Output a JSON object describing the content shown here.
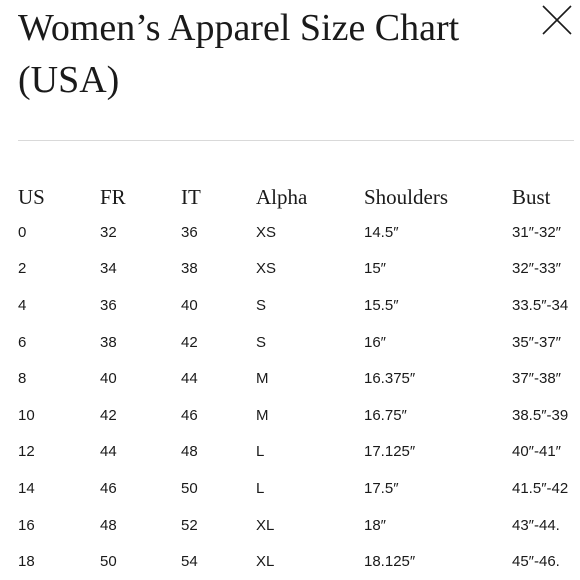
{
  "title": "Women’s Apparel Size Chart (USA)",
  "close_icon": "close-icon",
  "table": {
    "headers": [
      "US",
      "FR",
      "IT",
      "Alpha",
      "Shoulders",
      "Bust"
    ],
    "rows": [
      [
        "0",
        "32",
        "36",
        "XS",
        "14.5″",
        "31″-32″"
      ],
      [
        "2",
        "34",
        "38",
        "XS",
        "15″",
        "32″-33″"
      ],
      [
        "4",
        "36",
        "40",
        "S",
        "15.5″",
        "33.5″-34"
      ],
      [
        "6",
        "38",
        "42",
        "S",
        "16″",
        "35″-37″"
      ],
      [
        "8",
        "40",
        "44",
        "M",
        "16.375″",
        "37″-38″"
      ],
      [
        "10",
        "42",
        "46",
        "M",
        "16.75″",
        "38.5″-39"
      ],
      [
        "12",
        "44",
        "48",
        "L",
        "17.125″",
        "40″-41″"
      ],
      [
        "14",
        "46",
        "50",
        "L",
        "17.5″",
        "41.5″-42"
      ],
      [
        "16",
        "48",
        "52",
        "XL",
        "18″",
        "43″-44."
      ],
      [
        "18",
        "50",
        "54",
        "XL",
        "18.125″",
        "45″-46."
      ]
    ]
  }
}
